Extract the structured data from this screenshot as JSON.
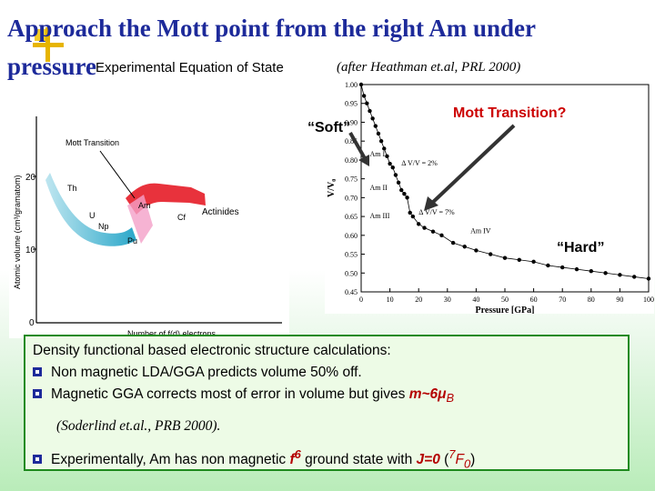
{
  "title": {
    "line1": "Approach the Mott point from the right Am under",
    "line2": "pressure"
  },
  "subtitle": "Experimental Equation of State",
  "citation": "(after Heathman et.al, PRL 2000)",
  "annotations": {
    "soft": "“Soft”",
    "mott": "Mott Transition?",
    "hard": "“Hard”"
  },
  "left_figure": {
    "ylabel": "Atomic volume (cm³/gramatom)",
    "xlabel": "Number of f(d) electrons",
    "y_ticks": [
      "0",
      "10",
      "20"
    ],
    "mott_label": "Mott Transition",
    "actinides_label": "Actinides",
    "elements": [
      "Th",
      "U",
      "Np",
      "Pu",
      "Am",
      "Cf"
    ]
  },
  "chart_data": {
    "type": "scatter",
    "xlabel": "Pressure [GPa]",
    "ylabel": "V/V₀",
    "xlim": [
      0,
      100
    ],
    "ylim": [
      0.45,
      1.0
    ],
    "x_ticks": [
      "0",
      "10",
      "20",
      "30",
      "40",
      "50",
      "60",
      "70",
      "80",
      "90",
      "100"
    ],
    "y_ticks": [
      "0.45",
      "0.50",
      "0.55",
      "0.60",
      "0.65",
      "0.70",
      "0.75",
      "0.80",
      "0.85",
      "0.90",
      "0.95",
      "1.00"
    ],
    "phase_labels": [
      "Am I",
      "Am II",
      "Am III",
      "Am IV"
    ],
    "annotations": [
      "Δ V/V = 2%",
      "Δ V/V = 7%"
    ],
    "x": [
      0,
      1,
      2,
      3,
      4,
      5,
      6,
      7,
      8,
      9,
      10,
      11,
      12,
      13,
      14,
      15,
      16,
      17,
      18,
      20,
      22,
      25,
      28,
      32,
      36,
      40,
      45,
      50,
      55,
      60,
      65,
      70,
      75,
      80,
      85,
      90,
      95,
      100
    ],
    "y": [
      1.0,
      0.97,
      0.95,
      0.93,
      0.91,
      0.89,
      0.87,
      0.85,
      0.83,
      0.81,
      0.79,
      0.78,
      0.76,
      0.74,
      0.72,
      0.71,
      0.7,
      0.66,
      0.65,
      0.63,
      0.62,
      0.61,
      0.6,
      0.58,
      0.57,
      0.56,
      0.55,
      0.54,
      0.535,
      0.53,
      0.52,
      0.515,
      0.51,
      0.505,
      0.5,
      0.495,
      0.49,
      0.485
    ]
  },
  "body": {
    "line1": "Density functional based electronic structure calculations:",
    "bullet1": "Non magnetic LDA/GGA predicts volume 50% off.",
    "bullet2_pre": "Magnetic GGA corrects most of error in volume but gives ",
    "bullet2_hl": "m~6μ",
    "bullet2_sub": "B",
    "ref": "(Soderlind et.al., PRB 2000).",
    "bullet3_pre": "Experimentally, Am has non magnetic ",
    "bullet3_f": "f",
    "bullet3_sup": "6",
    "bullet3_mid": " ground state with ",
    "bullet3_j": "J=0",
    "bullet3_open": " (",
    "bullet3_term_sup": "7",
    "bullet3_term": "F",
    "bullet3_term_sub": "0",
    "bullet3_close": ")"
  },
  "colors": {
    "title": "#1d2a9a",
    "accent_red": "#cc0000",
    "box_border": "#1e8a1e"
  }
}
